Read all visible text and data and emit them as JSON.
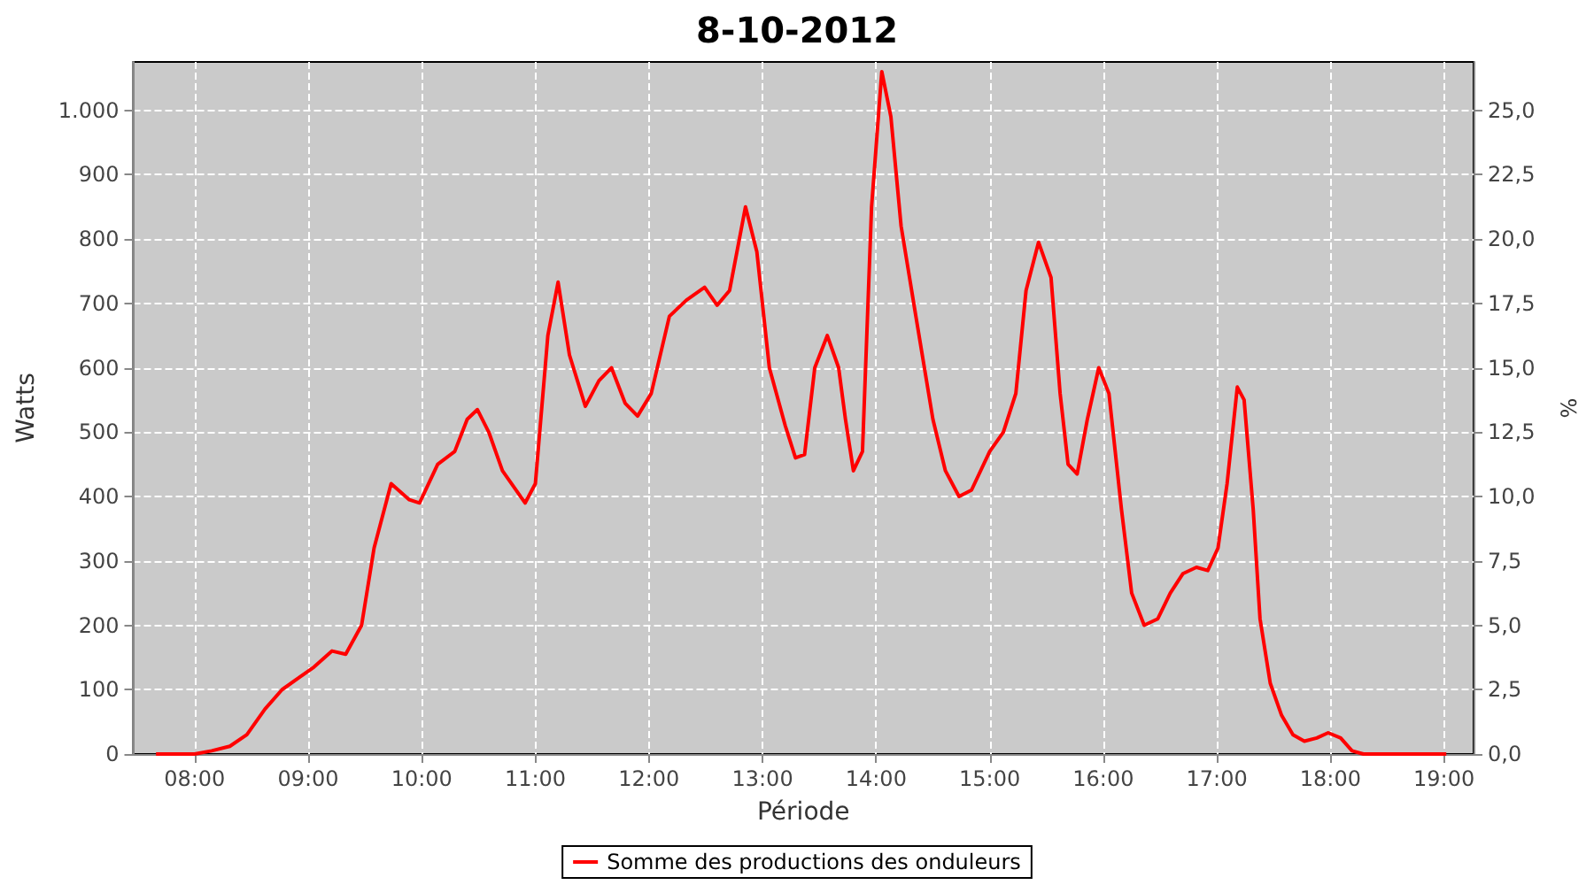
{
  "chart_data": {
    "type": "line",
    "title": "8-10-2012",
    "xlabel": "Période",
    "ylabel": "Watts",
    "y2label": "%",
    "xlim": [
      7.46,
      19.26
    ],
    "xticks": [
      {
        "value": 8,
        "label": "08:00"
      },
      {
        "value": 9,
        "label": "09:00"
      },
      {
        "value": 10,
        "label": "10:00"
      },
      {
        "value": 11,
        "label": "11:00"
      },
      {
        "value": 12,
        "label": "12:00"
      },
      {
        "value": 13,
        "label": "13:00"
      },
      {
        "value": 14,
        "label": "14:00"
      },
      {
        "value": 15,
        "label": "15:00"
      },
      {
        "value": 16,
        "label": "16:00"
      },
      {
        "value": 17,
        "label": "17:00"
      },
      {
        "value": 18,
        "label": "18:00"
      },
      {
        "value": 19,
        "label": "19:00"
      }
    ],
    "ylim": [
      0,
      1075
    ],
    "yticks": [
      0,
      100,
      200,
      300,
      400,
      500,
      600,
      700,
      800,
      900,
      {
        "value": 1000,
        "label": "1.000"
      }
    ],
    "y2lim": [
      0,
      26.875
    ],
    "y2ticks": [
      {
        "value": 0,
        "label": "0,0"
      },
      {
        "value": 2.5,
        "label": "2,5"
      },
      {
        "value": 5,
        "label": "5,0"
      },
      {
        "value": 7.5,
        "label": "7,5"
      },
      {
        "value": 10,
        "label": "10,0"
      },
      {
        "value": 12.5,
        "label": "12,5"
      },
      {
        "value": 15,
        "label": "15,0"
      },
      {
        "value": 17.5,
        "label": "17,5"
      },
      {
        "value": 20,
        "label": "20,0"
      },
      {
        "value": 22.5,
        "label": "22,5"
      },
      {
        "value": 25,
        "label": "25,0"
      }
    ],
    "series": [
      {
        "name": "Somme des productions des onduleurs",
        "color": "#ff0000",
        "x": [
          7.66,
          8.0,
          8.15,
          8.31,
          8.46,
          8.62,
          8.77,
          8.93,
          9.05,
          9.21,
          9.33,
          9.47,
          9.58,
          9.73,
          9.89,
          9.98,
          10.14,
          10.29,
          10.4,
          10.49,
          10.59,
          10.71,
          10.91,
          11.0,
          11.11,
          11.2,
          11.3,
          11.44,
          11.56,
          11.67,
          11.79,
          11.9,
          12.02,
          12.18,
          12.33,
          12.49,
          12.6,
          12.71,
          12.85,
          12.95,
          13.06,
          13.2,
          13.29,
          13.37,
          13.46,
          13.57,
          13.67,
          13.73,
          13.8,
          13.88,
          13.96,
          14.05,
          14.13,
          14.22,
          14.35,
          14.5,
          14.61,
          14.73,
          14.84,
          15.0,
          15.12,
          15.23,
          15.32,
          15.43,
          15.54,
          15.62,
          15.69,
          15.77,
          15.86,
          15.96,
          16.05,
          16.16,
          16.25,
          16.36,
          16.48,
          16.59,
          16.7,
          16.82,
          16.92,
          17.01,
          17.09,
          17.18,
          17.24,
          17.32,
          17.38,
          17.47,
          17.57,
          17.67,
          17.77,
          17.88,
          17.98,
          18.09,
          18.19,
          18.29,
          19.02
        ],
        "values": [
          0,
          0,
          5,
          12,
          30,
          70,
          100,
          120,
          135,
          160,
          155,
          200,
          320,
          420,
          395,
          390,
          450,
          470,
          520,
          535,
          500,
          440,
          390,
          420,
          650,
          733,
          620,
          540,
          580,
          600,
          545,
          525,
          560,
          680,
          705,
          725,
          697,
          720,
          850,
          780,
          600,
          510,
          460,
          465,
          600,
          650,
          600,
          520,
          440,
          470,
          850,
          1060,
          990,
          820,
          680,
          520,
          440,
          400,
          410,
          470,
          500,
          560,
          720,
          795,
          740,
          560,
          450,
          435,
          520,
          600,
          560,
          380,
          250,
          200,
          210,
          250,
          280,
          290,
          285,
          320,
          420,
          570,
          550,
          380,
          210,
          110,
          60,
          30,
          20,
          25,
          33,
          25,
          5,
          0,
          0
        ]
      }
    ],
    "grid": true,
    "legend": "bottom",
    "marker": "none",
    "line_style": "solid"
  }
}
